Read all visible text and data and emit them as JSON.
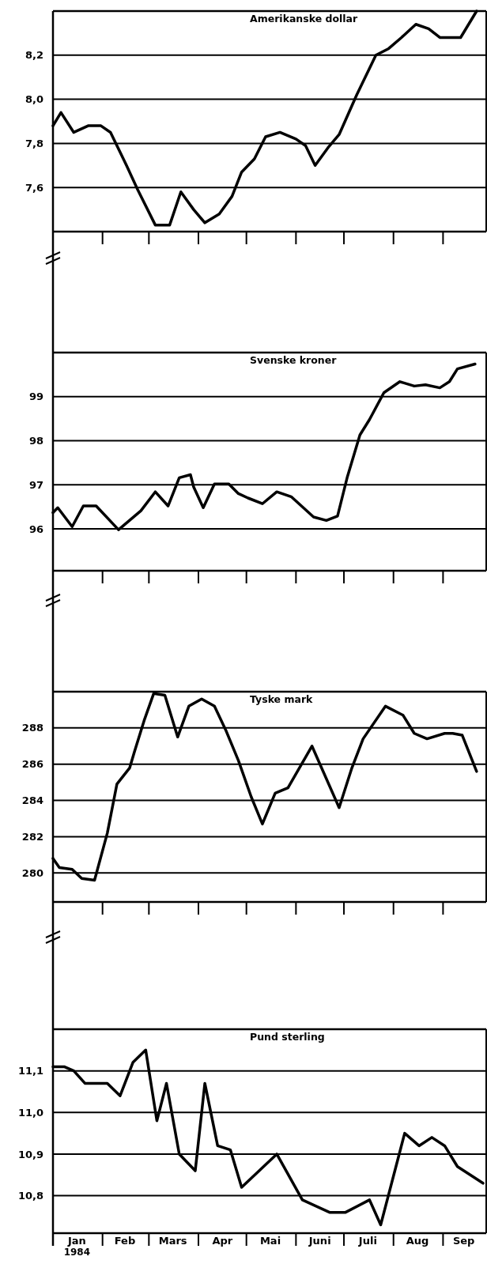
{
  "chart_data": [
    {
      "type": "line",
      "title": "Amerikanske dollar",
      "grid": "y",
      "tick_labels": "y",
      "xlim": [
        "1984-01-01",
        "1984-09-28"
      ],
      "ylim": [
        7.4,
        8.4
      ],
      "yticks": [
        {
          "value": 7.6,
          "label": "7,6"
        },
        {
          "value": 7.8,
          "label": "7,8"
        },
        {
          "value": 8.0,
          "label": "8,0"
        },
        {
          "value": 8.2,
          "label": "8,2"
        }
      ],
      "xticks": [
        {
          "value": "1984-02-01",
          "label": null
        },
        {
          "value": "1984-03-01",
          "label": null
        },
        {
          "value": "1984-04-01",
          "label": null
        },
        {
          "value": "1984-05-01",
          "label": null
        },
        {
          "value": "1984-06-01",
          "label": null
        },
        {
          "value": "1984-07-01",
          "label": null
        },
        {
          "value": "1984-08-01",
          "label": null
        },
        {
          "value": "1984-09-01",
          "label": null
        }
      ],
      "series": [
        {
          "color": "#000000",
          "x": [
            "1984-01-01",
            "1984-01-06",
            "1984-01-14",
            "1984-01-23",
            "1984-01-31",
            "1984-02-06",
            "1984-02-16",
            "1984-02-23",
            "1984-03-05",
            "1984-03-14",
            "1984-03-21",
            "1984-03-29",
            "1984-04-05",
            "1984-04-14",
            "1984-04-22",
            "1984-04-28",
            "1984-05-06",
            "1984-05-13",
            "1984-05-22",
            "1984-06-01",
            "1984-06-07",
            "1984-06-13",
            "1984-06-21",
            "1984-06-28",
            "1984-07-09",
            "1984-07-21",
            "1984-07-29",
            "1984-08-06",
            "1984-08-15",
            "1984-08-23",
            "1984-08-30",
            "1984-09-12",
            "1984-09-22"
          ],
          "values": [
            7.88,
            7.94,
            7.85,
            7.88,
            7.88,
            7.85,
            7.7,
            7.59,
            7.43,
            7.43,
            7.58,
            7.5,
            7.44,
            7.48,
            7.56,
            7.67,
            7.73,
            7.83,
            7.85,
            7.82,
            7.79,
            7.7,
            7.78,
            7.84,
            8.02,
            8.2,
            8.23,
            8.28,
            8.34,
            8.32,
            8.28,
            8.28,
            8.4
          ]
        }
      ]
    },
    {
      "type": "line",
      "title": "Svenske kroner",
      "grid": "y",
      "tick_labels": "y",
      "xlim": [
        "1984-01-01",
        "1984-09-28"
      ],
      "ylim": [
        95.05,
        100
      ],
      "yticks": [
        96,
        97,
        98,
        99
      ],
      "xticks": [
        {
          "value": "1984-02-01",
          "label": null
        },
        {
          "value": "1984-03-01",
          "label": null
        },
        {
          "value": "1984-04-01",
          "label": null
        },
        {
          "value": "1984-05-01",
          "label": null
        },
        {
          "value": "1984-06-01",
          "label": null
        },
        {
          "value": "1984-07-01",
          "label": null
        },
        {
          "value": "1984-08-01",
          "label": null
        },
        {
          "value": "1984-09-01",
          "label": null
        }
      ],
      "series": [
        {
          "color": "#000000",
          "x": [
            "1984-01-01",
            "1984-01-04",
            "1984-01-13",
            "1984-01-20",
            "1984-01-28",
            "1984-02-11",
            "1984-02-25",
            "1984-03-05",
            "1984-03-13",
            "1984-03-20",
            "1984-03-27",
            "1984-03-29",
            "1984-04-04",
            "1984-04-11",
            "1984-04-20",
            "1984-04-26",
            "1984-05-02",
            "1984-05-11",
            "1984-05-20",
            "1984-05-29",
            "1984-06-12",
            "1984-06-20",
            "1984-06-27",
            "1984-07-03",
            "1984-07-11",
            "1984-07-17",
            "1984-07-26",
            "1984-08-05",
            "1984-08-14",
            "1984-08-21",
            "1984-08-30",
            "1984-09-05",
            "1984-09-10",
            "1984-09-21"
          ],
          "values": [
            96.37,
            96.48,
            96.05,
            96.52,
            96.52,
            95.98,
            96.41,
            96.84,
            96.52,
            97.16,
            97.23,
            96.95,
            96.48,
            97.02,
            97.02,
            96.8,
            96.7,
            96.57,
            96.84,
            96.73,
            96.27,
            96.19,
            96.29,
            97.16,
            98.13,
            98.48,
            99.09,
            99.34,
            99.24,
            99.27,
            99.2,
            99.34,
            99.63,
            99.74
          ]
        }
      ]
    },
    {
      "type": "line",
      "title": "Tyske mark",
      "grid": "y",
      "tick_labels": "y",
      "xlim": [
        "1984-01-01",
        "1984-09-28"
      ],
      "ylim": [
        278.4,
        290
      ],
      "yticks": [
        280,
        282,
        284,
        286,
        288
      ],
      "xticks": [
        {
          "value": "1984-02-01",
          "label": null
        },
        {
          "value": "1984-03-01",
          "label": null
        },
        {
          "value": "1984-04-01",
          "label": null
        },
        {
          "value": "1984-05-01",
          "label": null
        },
        {
          "value": "1984-06-01",
          "label": null
        },
        {
          "value": "1984-07-01",
          "label": null
        },
        {
          "value": "1984-08-01",
          "label": null
        },
        {
          "value": "1984-09-01",
          "label": null
        }
      ],
      "series": [
        {
          "color": "#000000",
          "x": [
            "1984-01-01",
            "1984-01-05",
            "1984-01-13",
            "1984-01-19",
            "1984-01-27",
            "1984-02-04",
            "1984-02-10",
            "1984-02-18",
            "1984-02-21",
            "1984-02-27",
            "1984-03-04",
            "1984-03-11",
            "1984-03-19",
            "1984-03-26",
            "1984-04-03",
            "1984-04-11",
            "1984-04-18",
            "1984-04-26",
            "1984-05-04",
            "1984-05-11",
            "1984-05-19",
            "1984-05-27",
            "1984-06-11",
            "1984-06-28",
            "1984-07-06",
            "1984-07-13",
            "1984-07-27",
            "1984-08-07",
            "1984-08-14",
            "1984-08-22",
            "1984-09-02",
            "1984-09-07",
            "1984-09-13",
            "1984-09-22"
          ],
          "values": [
            280.8,
            280.3,
            280.2,
            279.7,
            279.6,
            282.2,
            284.9,
            285.8,
            286.7,
            288.4,
            289.9,
            289.8,
            287.5,
            289.2,
            289.6,
            289.2,
            287.9,
            286.2,
            284.2,
            282.7,
            284.4,
            284.7,
            287,
            283.6,
            285.8,
            287.4,
            289.2,
            288.7,
            287.7,
            287.4,
            287.7,
            287.7,
            287.6,
            285.6
          ]
        }
      ]
    },
    {
      "type": "line",
      "title": "Pund sterling",
      "grid": "y",
      "xlim": [
        "1984-01-01",
        "1984-09-28"
      ],
      "ylim": [
        10.71,
        11.2
      ],
      "yticks": [
        {
          "value": 10.8,
          "label": "10,8"
        },
        {
          "value": 10.9,
          "label": "10,9"
        },
        {
          "value": 11.0,
          "label": "11,0"
        },
        {
          "value": 11.1,
          "label": "11,1"
        }
      ],
      "xticks": [
        {
          "value": "1984-02-01",
          "label": null
        },
        {
          "value": "1984-03-01",
          "label": null
        },
        {
          "value": "1984-04-01",
          "label": null
        },
        {
          "value": "1984-05-01",
          "label": null
        },
        {
          "value": "1984-06-01",
          "label": null
        },
        {
          "value": "1984-07-01",
          "label": null
        },
        {
          "value": "1984-08-01",
          "label": null
        },
        {
          "value": "1984-09-01",
          "label": null
        },
        {
          "value": "1984-01-16",
          "label": "Jan"
        },
        {
          "value": "1984-02-15",
          "label": "Feb"
        },
        {
          "value": "1984-03-16",
          "label": "Mars"
        },
        {
          "value": "1984-04-16",
          "label": "Apr"
        },
        {
          "value": "1984-05-16",
          "label": "Mai"
        },
        {
          "value": "1984-06-16",
          "label": "Juni"
        },
        {
          "value": "1984-07-16",
          "label": "Juli"
        },
        {
          "value": "1984-08-16",
          "label": "Aug"
        },
        {
          "value": "1984-09-14",
          "label": "Sep"
        }
      ],
      "annotations": [
        "1984"
      ],
      "series": [
        {
          "color": "#000000",
          "x": [
            "1984-01-01",
            "1984-01-08",
            "1984-01-14",
            "1984-01-21",
            "1984-01-27",
            "1984-02-04",
            "1984-02-12",
            "1984-02-20",
            "1984-02-28",
            "1984-03-06",
            "1984-03-12",
            "1984-03-20",
            "1984-03-30",
            "1984-04-05",
            "1984-04-13",
            "1984-04-21",
            "1984-04-28",
            "1984-05-20",
            "1984-06-05",
            "1984-06-22",
            "1984-07-02",
            "1984-07-17",
            "1984-07-24",
            "1984-08-08",
            "1984-08-17",
            "1984-08-25",
            "1984-09-02",
            "1984-09-10",
            "1984-09-26"
          ],
          "values": [
            11.11,
            11.11,
            11.1,
            11.07,
            11.07,
            11.07,
            11.04,
            11.12,
            11.15,
            10.98,
            11.07,
            10.9,
            10.86,
            11.07,
            10.92,
            10.91,
            10.82,
            10.9,
            10.79,
            10.76,
            10.76,
            10.79,
            10.73,
            10.95,
            10.92,
            10.94,
            10.92,
            10.87,
            10.83
          ]
        }
      ]
    }
  ]
}
